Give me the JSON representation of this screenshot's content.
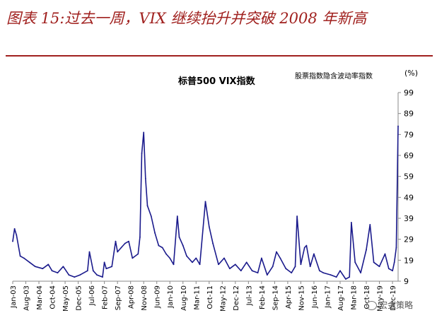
{
  "figure_title": "图表 15:过去一周，VIX 继续抬升并突破 2008 年新高",
  "unit": "(%)",
  "legend_label": "股票指数隐含波动率指数",
  "watermark": "宏金策略",
  "colors": {
    "title": "#a0201e",
    "series": "#1a1a8c",
    "rule": "#a0201e"
  },
  "icons": [
    "wechat-icon"
  ],
  "chart_data": {
    "type": "line",
    "title": "标普500 VIX指数",
    "ylabel": "(%)",
    "ylim": [
      9,
      99
    ],
    "yticks": [
      9,
      19,
      29,
      39,
      49,
      59,
      69,
      79,
      89,
      99
    ],
    "y_axis_position": "right",
    "legend_position": "top-right",
    "grid": false,
    "xlim": [
      "2003-01",
      "2020-03"
    ],
    "xticks": [
      "Jan-03",
      "Aug-03",
      "Mar-04",
      "Oct-04",
      "May-05",
      "Dec-05",
      "Jul-06",
      "Feb-07",
      "Sep-07",
      "Apr-08",
      "Nov-08",
      "Jun-09",
      "Jan-10",
      "Aug-10",
      "Mar-11",
      "Oct-11",
      "May-12",
      "Dec-12",
      "Jul-13",
      "Feb-14",
      "Sep-14",
      "Apr-15",
      "Nov-15",
      "Jun-16",
      "Jan-17",
      "Aug-17",
      "Mar-18",
      "Oct-18",
      "May-19",
      "Dec-19"
    ],
    "series": [
      {
        "name": "股票指数隐含波动率指数",
        "x": [
          "2003-01",
          "2003-02",
          "2003-03",
          "2003-05",
          "2003-07",
          "2003-10",
          "2004-01",
          "2004-05",
          "2004-08",
          "2004-10",
          "2005-01",
          "2005-04",
          "2005-07",
          "2005-10",
          "2006-01",
          "2006-05",
          "2006-06",
          "2006-08",
          "2006-10",
          "2007-01",
          "2007-02",
          "2007-03",
          "2007-06",
          "2007-08",
          "2007-09",
          "2007-11",
          "2008-01",
          "2008-03",
          "2008-05",
          "2008-08",
          "2008-09",
          "2008-10",
          "2008-11",
          "2008-12",
          "2009-01",
          "2009-03",
          "2009-05",
          "2009-07",
          "2009-09",
          "2009-11",
          "2010-01",
          "2010-03",
          "2010-05",
          "2010-06",
          "2010-08",
          "2010-10",
          "2011-01",
          "2011-03",
          "2011-05",
          "2011-08",
          "2011-10",
          "2011-12",
          "2012-03",
          "2012-06",
          "2012-09",
          "2012-12",
          "2013-03",
          "2013-06",
          "2013-09",
          "2013-12",
          "2014-02",
          "2014-05",
          "2014-08",
          "2014-10",
          "2014-12",
          "2015-03",
          "2015-06",
          "2015-08",
          "2015-09",
          "2015-11",
          "2016-01",
          "2016-02",
          "2016-04",
          "2016-06",
          "2016-09",
          "2016-11",
          "2017-03",
          "2017-06",
          "2017-08",
          "2017-11",
          "2018-01",
          "2018-02",
          "2018-04",
          "2018-07",
          "2018-10",
          "2018-12",
          "2019-02",
          "2019-05",
          "2019-08",
          "2019-10",
          "2019-12",
          "2020-01",
          "2020-02",
          "2020-03"
        ],
        "values": [
          28,
          34,
          31,
          21,
          20,
          18,
          16,
          15,
          17,
          14,
          13,
          16,
          12,
          11,
          12,
          14,
          23,
          14,
          12,
          11,
          18,
          15,
          16,
          28,
          23,
          25,
          27,
          28,
          20,
          22,
          30,
          70,
          80,
          58,
          45,
          40,
          32,
          26,
          25,
          22,
          20,
          17,
          40,
          30,
          26,
          21,
          18,
          20,
          17,
          47,
          35,
          27,
          17,
          20,
          15,
          17,
          14,
          18,
          14,
          13,
          20,
          12,
          16,
          23,
          20,
          15,
          13,
          16,
          40,
          17,
          25,
          26,
          16,
          22,
          14,
          13,
          12,
          11,
          14,
          10,
          11,
          37,
          18,
          13,
          24,
          36,
          18,
          16,
          22,
          15,
          14,
          18,
          25,
          83
        ]
      }
    ]
  }
}
